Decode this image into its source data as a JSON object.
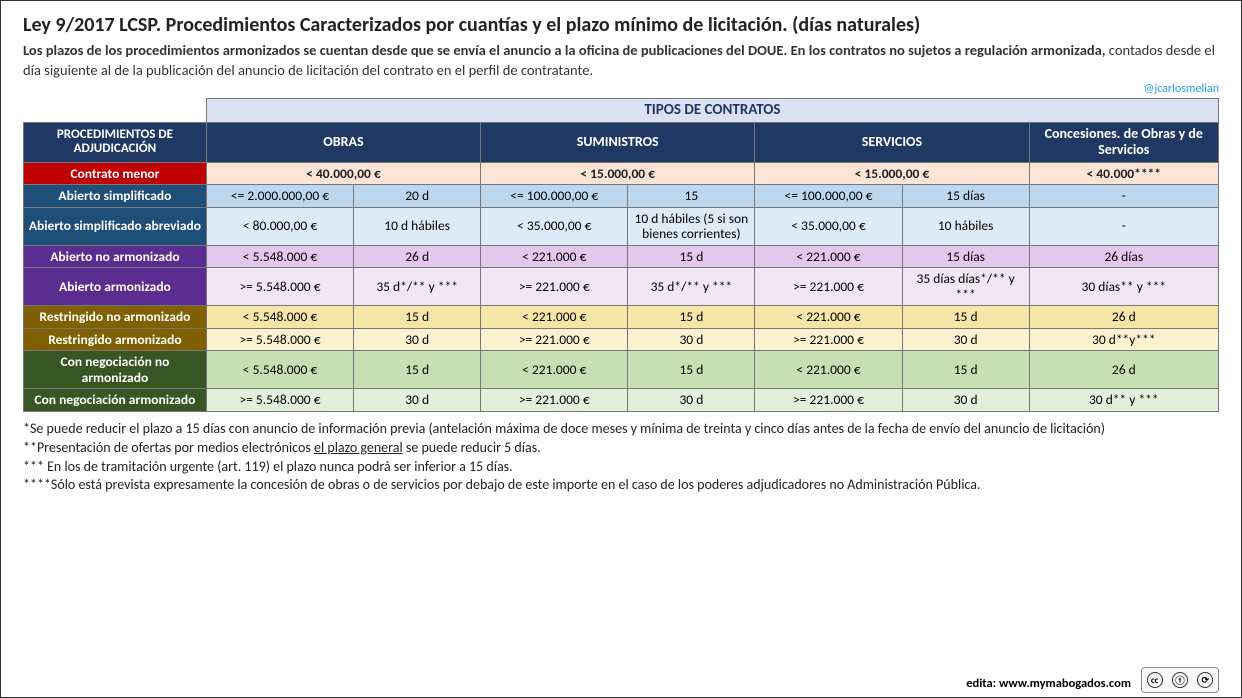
{
  "title": "Ley 9/2017 LCSP. Procedimientos Caracterizados por cuantías y el plazo mínimo de licitación. (días naturales)",
  "subtitle_bold": "Los plazos de los procedimientos armonizados se cuentan desde que se envía el anuncio a la oficina de publicaciones del DOUE. En los contratos no sujetos a regulación armonizada,",
  "subtitle_rest": " contados desde el día siguiente al de la publicación del anuncio de licitación del contrato en el perfil de contratante.",
  "twitter": "@jcarlosmelian",
  "headers": {
    "tipos": "TIPOS DE CONTRATOS",
    "proc": "PROCEDIMIENTOS DE ADJUDICACIÓN",
    "obras": "OBRAS",
    "suministros": "SUMINISTROS",
    "servicios": "SERVICIOS",
    "concesiones": "Concesiones. de Obras y  de Servicios"
  },
  "rows": {
    "menor": {
      "label": "Contrato menor",
      "obras": "< 40.000,00 €",
      "sumin": "< 15.000,00 €",
      "serv": "< 15.000,00 €",
      "conc": "< 40.000****"
    },
    "simp": {
      "label": "Abierto simplificado",
      "obras_a": "<= 2.000.000,00 €",
      "obras_b": "20 d",
      "sumin_a": "<= 100.000,00 €",
      "sumin_b": "15",
      "serv_a": "<= 100.000,00 €",
      "serv_b": "15 días",
      "conc": "-"
    },
    "simp_abrev": {
      "label": "Abierto simplificado abreviado",
      "obras_a": "< 80.000,00 €",
      "obras_b": "10 d hábiles",
      "sumin_a": "< 35.000,00 €",
      "sumin_b": "10 d hábiles (5 si son bienes corrientes)",
      "serv_a": "< 35.000,00 €",
      "serv_b": "10 hábiles",
      "conc": "-"
    },
    "ab_no_arm": {
      "label": "Abierto no armonizado",
      "obras_a": "< 5.548.000 €",
      "obras_b": "26 d",
      "sumin_a": "< 221.000 €",
      "sumin_b": "15 d",
      "serv_a": "< 221.000 €",
      "serv_b": "15 días",
      "conc": "26 días"
    },
    "ab_arm": {
      "label": "Abierto armonizado",
      "obras_a": ">= 5.548.000 €",
      "obras_b": "35 d*/** y ***",
      "sumin_a": ">= 221.000 €",
      "sumin_b": "35 d*/** y ***",
      "serv_a": ">= 221.000 €",
      "serv_b": "35 días días*/** y ***",
      "conc": "30 días** y ***"
    },
    "rest_no_arm": {
      "label": "Restringido no armonizado",
      "obras_a": "< 5.548.000 €",
      "obras_b": "15 d",
      "sumin_a": "< 221.000 €",
      "sumin_b": "15 d",
      "serv_a": "< 221.000 €",
      "serv_b": "15 d",
      "conc": "26 d"
    },
    "rest_arm": {
      "label": "Restringido armonizado",
      "obras_a": ">= 5.548.000 €",
      "obras_b": "30 d",
      "sumin_a": ">= 221.000 €",
      "sumin_b": "30 d",
      "serv_a": ">= 221.000 €",
      "serv_b": "30 d",
      "conc": "30 d**y***"
    },
    "neg_no_arm": {
      "label": "Con negociación no armonizado",
      "obras_a": "< 5.548.000 €",
      "obras_b": "15 d",
      "sumin_a": "< 221.000 €",
      "sumin_b": "15 d",
      "serv_a": "< 221.000 €",
      "serv_b": "15 d",
      "conc": "26 d"
    },
    "neg_arm": {
      "label": "Con negociación armonizado",
      "obras_a": ">= 5.548.000 €",
      "obras_b": "30 d",
      "sumin_a": ">= 221.000 €",
      "sumin_b": "30 d",
      "serv_a": ">= 221.000 €",
      "serv_b": "30 d",
      "conc": "30 d** y ***"
    }
  },
  "footnotes": {
    "f1a": "*Se puede reducir el plazo a 15 días con anuncio de información previa (antelación máxima de doce meses y mínima de treinta y cinco días antes de la fecha de envío del anuncio de licitación)",
    "f2a": "**Presentación de ofertas por medios electrónicos ",
    "f2u": "el plazo general",
    "f2b": " se puede reducir 5 días.",
    "f3": "*** En los de tramitación urgente (art. 119) el plazo nunca podrá ser inferior a 15 días.",
    "f4": "****Sólo está prevista expresamente la concesión de obras o de servicios por debajo de este importe en el caso de los poderes adjudicadores no Administración Pública."
  },
  "credit": "edita: www.mymabogados.com",
  "cc": {
    "label": "cc",
    "by": "BY",
    "sa": "SA"
  },
  "colors": {
    "hdr_bg": "#1f3864",
    "hdr_light": "#d9e1f2",
    "menor_lbl": "#c00000",
    "menor_cell": "#fce4d6",
    "blue_lbl": "#1f4e79",
    "blue1": "#bdd7ee",
    "blue2": "#ddebf7",
    "purple_lbl": "#5b2d91",
    "purple1": "#e4c7ec",
    "purple2": "#f2e5f5",
    "olive_lbl": "#806000",
    "olive1": "#f5e6a8",
    "olive2": "#fbf3d0",
    "green_lbl": "#375623",
    "green1": "#c6e0b4",
    "green2": "#e2efda"
  }
}
